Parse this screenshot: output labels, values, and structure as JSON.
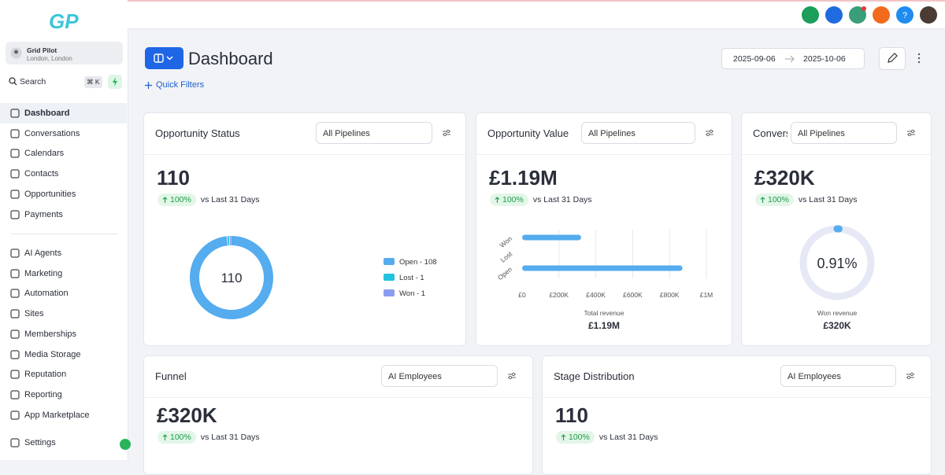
{
  "logo": "GP",
  "sidebar": {
    "account": {
      "name": "Grid Pilot",
      "location": "London, London"
    },
    "search": {
      "label": "Search",
      "shortcut": "⌘ K"
    },
    "nav": [
      "Dashboard",
      "Conversations",
      "Calendars",
      "Contacts",
      "Opportunities",
      "Payments"
    ],
    "nav2": [
      "AI Agents",
      "Marketing",
      "Automation",
      "Sites",
      "Memberships",
      "Media Storage",
      "Reputation",
      "Reporting",
      "App Marketplace"
    ],
    "settings": "Settings"
  },
  "header": {
    "title": "Dashboard",
    "quick_filters": "Quick Filters",
    "date_start": "2025-09-06",
    "date_end": "2025-10-06",
    "help": "?"
  },
  "cards": [
    {
      "title": "Opportunity Status",
      "filter": "All Pipelines",
      "value": "110",
      "change": "100%",
      "compare": "vs Last 31 Days",
      "chart": {
        "type": "donut",
        "center": "110",
        "labels": [
          "Open - 108",
          "Lost - 1",
          "Won - 1"
        ],
        "values": [
          108,
          1,
          1
        ],
        "colors": [
          "#55acee",
          "#22c3de",
          "#8b9df0"
        ]
      }
    },
    {
      "title": "Opportunity Value",
      "filter": "All Pipelines",
      "value": "£1.19M",
      "change": "100%",
      "compare": "vs Last 31 Days",
      "chart": {
        "type": "bar",
        "categories": [
          "Won",
          "Lost",
          "Open"
        ],
        "values": [
          320000,
          0,
          870000
        ],
        "color": "#55acee",
        "xlim": [
          0,
          1000000
        ],
        "xticks": [
          {
            "value": 0,
            "label": "£0"
          },
          {
            "value": 200000,
            "label": "£200K"
          },
          {
            "value": 400000,
            "label": "£400K"
          },
          {
            "value": 600000,
            "label": "£600K"
          },
          {
            "value": 800000,
            "label": "£800K"
          },
          {
            "value": 1000000,
            "label": "£1M"
          }
        ],
        "xlabel": "Total revenue",
        "total": "£1.19M"
      }
    },
    {
      "title": "Conversion Rate",
      "filter": "All Pipelines",
      "value": "£320K",
      "change": "100%",
      "compare": "vs Last 31 Days",
      "chart": {
        "type": "gauge",
        "value": 0.91,
        "value_label": "0.91%",
        "lim": [
          0,
          100
        ],
        "color": "#55acee",
        "caption": "Won revenue",
        "amount": "£320K"
      }
    },
    {
      "title": "Funnel",
      "filter": "AI Employees",
      "value": "£320K",
      "change": "100%",
      "compare": "vs Last 31 Days"
    },
    {
      "title": "Stage Distribution",
      "filter": "AI Employees",
      "value": "110",
      "change": "100%",
      "compare": "vs Last 31 Days"
    }
  ]
}
